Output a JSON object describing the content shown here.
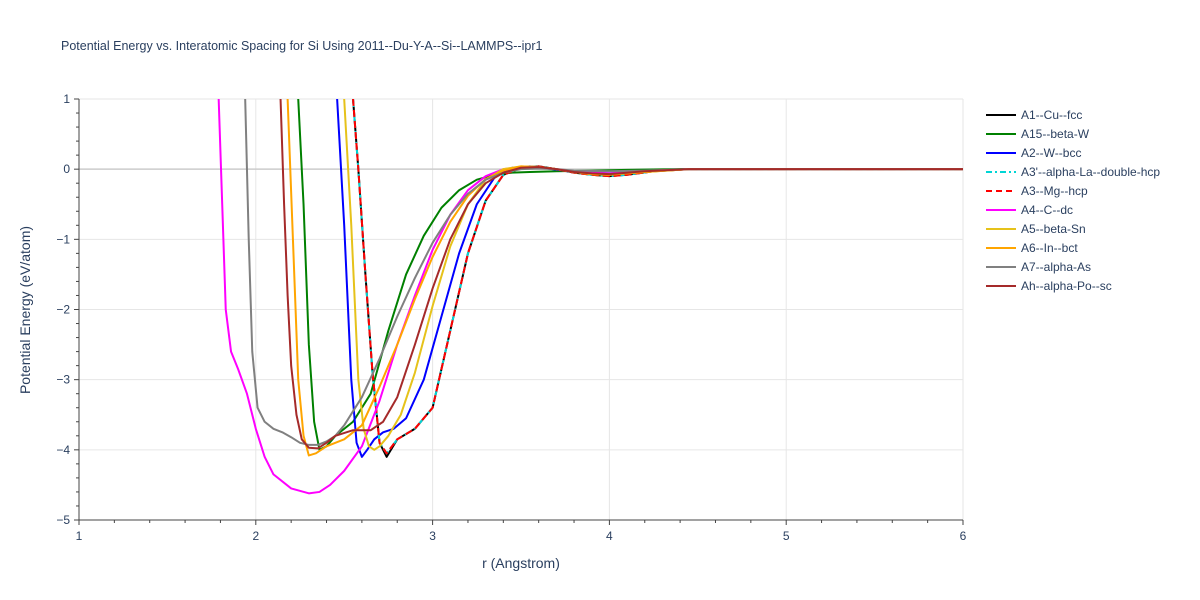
{
  "chart_data": {
    "type": "line",
    "title": "Potential Energy vs. Interatomic Spacing for Si Using 2011--Du-Y-A--Si--LAMMPS--ipr1",
    "xlabel": "r (Angstrom)",
    "ylabel": "Potential Energy (eV/atom)",
    "xlim": [
      1,
      6
    ],
    "ylim": [
      -5,
      1
    ],
    "xticks": [
      1,
      2,
      3,
      4,
      5,
      6
    ],
    "yticks": [
      1,
      0,
      -1,
      -2,
      -3,
      -4,
      -5
    ],
    "xtick_labels": [
      "1",
      "2",
      "3",
      "4",
      "5",
      "6"
    ],
    "ytick_labels": [
      "1",
      "0",
      "−1",
      "−2",
      "−3",
      "−4",
      "−5"
    ],
    "grid": true,
    "legend_position": "right",
    "series": [
      {
        "name": "A1--Cu--fcc",
        "color": "#000000",
        "dash": "solid",
        "x": [
          2.55,
          2.58,
          2.62,
          2.66,
          2.7,
          2.74,
          2.8,
          2.9,
          3.0,
          3.1,
          3.2,
          3.3,
          3.4,
          3.5,
          3.6,
          3.7,
          3.8,
          3.9,
          4.0,
          4.1,
          4.25,
          4.45,
          5.0,
          6.0
        ],
        "y": [
          1.0,
          0.0,
          -1.5,
          -2.9,
          -3.9,
          -4.1,
          -3.85,
          -3.7,
          -3.4,
          -2.3,
          -1.2,
          -0.45,
          -0.08,
          0.02,
          0.04,
          0.0,
          -0.05,
          -0.08,
          -0.1,
          -0.08,
          -0.03,
          0.0,
          0.0,
          0.0
        ]
      },
      {
        "name": "A15--beta-W",
        "color": "#008000",
        "dash": "solid",
        "x": [
          2.24,
          2.27,
          2.3,
          2.33,
          2.36,
          2.4,
          2.45,
          2.55,
          2.65,
          2.75,
          2.85,
          2.95,
          3.05,
          3.15,
          3.25,
          3.35,
          3.45,
          3.55,
          3.7,
          3.9,
          4.1,
          4.4,
          5.0,
          6.0
        ],
        "y": [
          1.0,
          -0.5,
          -2.5,
          -3.6,
          -4.0,
          -3.95,
          -3.8,
          -3.6,
          -3.2,
          -2.3,
          -1.5,
          -0.95,
          -0.55,
          -0.3,
          -0.15,
          -0.08,
          -0.05,
          -0.04,
          -0.03,
          -0.02,
          -0.01,
          0.0,
          0.0,
          0.0
        ]
      },
      {
        "name": "A2--W--bcc",
        "color": "#0000ff",
        "dash": "solid",
        "x": [
          2.46,
          2.5,
          2.54,
          2.57,
          2.6,
          2.63,
          2.67,
          2.72,
          2.78,
          2.85,
          2.95,
          3.05,
          3.15,
          3.25,
          3.35,
          3.45,
          3.55,
          3.65,
          3.8,
          4.0,
          4.2,
          4.45,
          5.0,
          6.0
        ],
        "y": [
          1.0,
          -0.8,
          -3.0,
          -3.9,
          -4.1,
          -4.0,
          -3.85,
          -3.75,
          -3.7,
          -3.55,
          -3.0,
          -2.1,
          -1.2,
          -0.5,
          -0.12,
          0.02,
          0.04,
          0.01,
          -0.04,
          -0.06,
          -0.03,
          0.0,
          0.0,
          0.0
        ]
      },
      {
        "name": "A3'--alpha-La--double-hcp",
        "color": "#00d5d5",
        "dash": "dashdot",
        "x": [
          2.55,
          2.58,
          2.62,
          2.66,
          2.7,
          2.74,
          2.8,
          2.9,
          3.0,
          3.1,
          3.2,
          3.3,
          3.4,
          3.5,
          3.6,
          3.7,
          3.8,
          3.9,
          4.0,
          4.1,
          4.25,
          4.45,
          5.0,
          6.0
        ],
        "y": [
          1.0,
          0.0,
          -1.5,
          -2.9,
          -3.9,
          -4.05,
          -3.85,
          -3.7,
          -3.4,
          -2.3,
          -1.2,
          -0.45,
          -0.08,
          0.02,
          0.04,
          0.0,
          -0.05,
          -0.08,
          -0.1,
          -0.08,
          -0.03,
          0.0,
          0.0,
          0.0
        ]
      },
      {
        "name": "A3--Mg--hcp",
        "color": "#ff0000",
        "dash": "dash",
        "x": [
          2.55,
          2.58,
          2.62,
          2.66,
          2.7,
          2.74,
          2.8,
          2.9,
          3.0,
          3.1,
          3.2,
          3.3,
          3.4,
          3.5,
          3.6,
          3.7,
          3.8,
          3.9,
          4.0,
          4.1,
          4.25,
          4.45,
          5.0,
          6.0
        ],
        "y": [
          1.0,
          0.0,
          -1.5,
          -2.9,
          -3.9,
          -4.05,
          -3.85,
          -3.7,
          -3.4,
          -2.3,
          -1.2,
          -0.45,
          -0.08,
          0.02,
          0.04,
          0.0,
          -0.05,
          -0.08,
          -0.1,
          -0.08,
          -0.03,
          0.0,
          0.0,
          0.0
        ]
      },
      {
        "name": "A4--C--dc",
        "color": "#ff00ff",
        "dash": "solid",
        "x": [
          1.79,
          1.81,
          1.83,
          1.86,
          1.9,
          1.95,
          2.0,
          2.05,
          2.1,
          2.2,
          2.3,
          2.36,
          2.42,
          2.5,
          2.6,
          2.7,
          2.8,
          2.9,
          3.0,
          3.1,
          3.2,
          3.3,
          3.4,
          3.5,
          3.6,
          3.7,
          3.8,
          3.9,
          4.0,
          4.2,
          4.45,
          5.0,
          6.0
        ],
        "y": [
          1.0,
          -0.5,
          -2.0,
          -2.6,
          -2.85,
          -3.2,
          -3.7,
          -4.1,
          -4.35,
          -4.55,
          -4.62,
          -4.6,
          -4.5,
          -4.3,
          -3.95,
          -3.3,
          -2.5,
          -1.8,
          -1.15,
          -0.65,
          -0.3,
          -0.1,
          0.0,
          0.03,
          0.02,
          0.0,
          -0.03,
          -0.05,
          -0.06,
          -0.03,
          0.0,
          0.0,
          0.0
        ]
      },
      {
        "name": "A5--beta-Sn",
        "color": "#e6c21a",
        "dash": "solid",
        "x": [
          2.5,
          2.54,
          2.58,
          2.61,
          2.64,
          2.67,
          2.7,
          2.75,
          2.82,
          2.9,
          3.0,
          3.1,
          3.2,
          3.3,
          3.4,
          3.5,
          3.6,
          3.7,
          3.8,
          3.9,
          4.0,
          4.2,
          4.45,
          5.0,
          6.0
        ],
        "y": [
          1.0,
          -0.8,
          -3.0,
          -3.7,
          -3.95,
          -4.0,
          -3.95,
          -3.8,
          -3.5,
          -2.9,
          -1.95,
          -1.1,
          -0.5,
          -0.15,
          0.0,
          0.04,
          0.03,
          0.0,
          -0.04,
          -0.07,
          -0.08,
          -0.04,
          0.0,
          0.0,
          0.0
        ]
      },
      {
        "name": "A6--In--bct",
        "color": "#ffa500",
        "dash": "solid",
        "x": [
          2.18,
          2.21,
          2.24,
          2.27,
          2.3,
          2.34,
          2.4,
          2.5,
          2.6,
          2.7,
          2.8,
          2.9,
          3.0,
          3.1,
          3.2,
          3.3,
          3.4,
          3.5,
          3.6,
          3.7,
          3.8,
          3.9,
          4.0,
          4.2,
          4.45,
          5.0,
          6.0
        ],
        "y": [
          1.0,
          -1.0,
          -3.0,
          -3.8,
          -4.08,
          -4.05,
          -3.95,
          -3.85,
          -3.65,
          -3.1,
          -2.5,
          -1.85,
          -1.25,
          -0.75,
          -0.38,
          -0.14,
          -0.02,
          0.04,
          0.03,
          0.0,
          -0.04,
          -0.07,
          -0.08,
          -0.04,
          0.0,
          0.0,
          0.0
        ]
      },
      {
        "name": "A7--alpha-As",
        "color": "#808080",
        "dash": "solid",
        "x": [
          1.94,
          1.96,
          1.98,
          2.01,
          2.05,
          2.1,
          2.15,
          2.2,
          2.25,
          2.3,
          2.35,
          2.4,
          2.45,
          2.5,
          2.6,
          2.7,
          2.8,
          2.9,
          3.0,
          3.1,
          3.2,
          3.3,
          3.4,
          3.5,
          3.6,
          3.7,
          3.8,
          4.0,
          4.2,
          4.45,
          5.0,
          6.0
        ],
        "y": [
          1.0,
          -1.0,
          -2.6,
          -3.4,
          -3.6,
          -3.7,
          -3.75,
          -3.82,
          -3.9,
          -3.93,
          -3.93,
          -3.88,
          -3.8,
          -3.65,
          -3.25,
          -2.7,
          -2.1,
          -1.55,
          -1.05,
          -0.65,
          -0.35,
          -0.15,
          -0.05,
          0.0,
          0.01,
          0.0,
          -0.02,
          -0.03,
          -0.02,
          0.0,
          0.0,
          0.0
        ]
      },
      {
        "name": "Ah--alpha-Po--sc",
        "color": "#a52a2a",
        "dash": "solid",
        "x": [
          2.14,
          2.16,
          2.18,
          2.2,
          2.23,
          2.26,
          2.3,
          2.35,
          2.4,
          2.45,
          2.55,
          2.65,
          2.72,
          2.8,
          2.9,
          3.0,
          3.1,
          3.2,
          3.3,
          3.4,
          3.5,
          3.6,
          3.7,
          3.8,
          3.9,
          4.0,
          4.2,
          4.45,
          5.0,
          6.0
        ],
        "y": [
          1.0,
          -0.5,
          -1.8,
          -2.8,
          -3.5,
          -3.85,
          -3.97,
          -3.98,
          -3.9,
          -3.8,
          -3.72,
          -3.72,
          -3.6,
          -3.25,
          -2.5,
          -1.7,
          -1.0,
          -0.5,
          -0.2,
          -0.05,
          0.02,
          0.03,
          0.0,
          -0.04,
          -0.06,
          -0.07,
          -0.03,
          0.0,
          0.0,
          0.0
        ]
      }
    ]
  }
}
